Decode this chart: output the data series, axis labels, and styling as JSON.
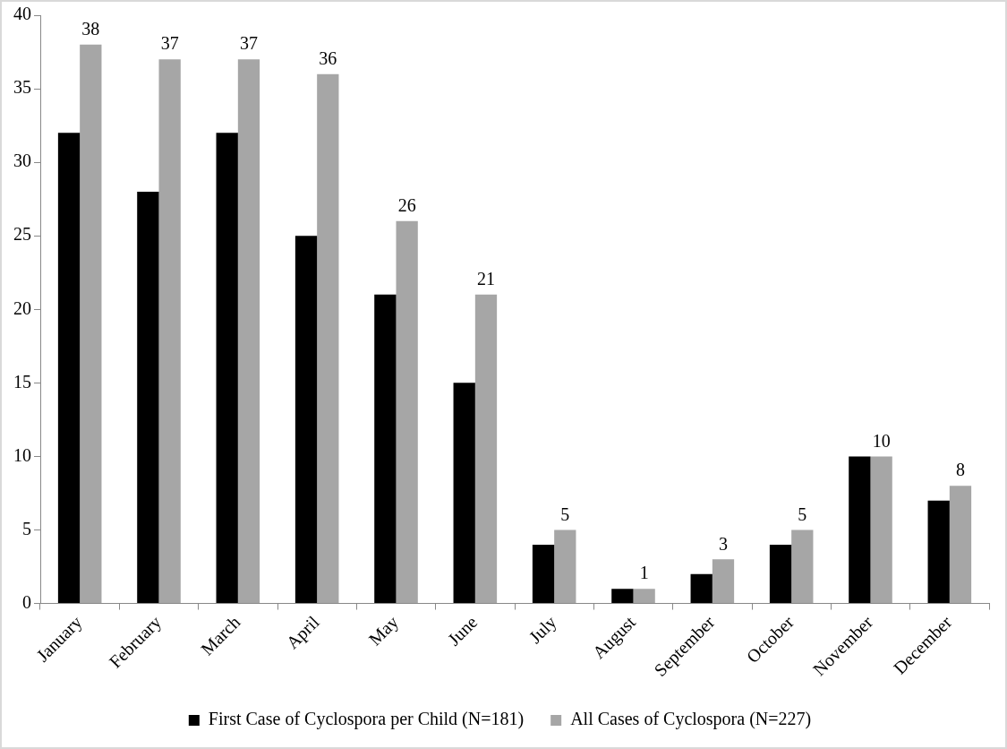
{
  "chart_data": {
    "type": "bar",
    "categories": [
      "January",
      "February",
      "March",
      "April",
      "May",
      "June",
      "July",
      "August",
      "September",
      "October",
      "November",
      "December"
    ],
    "series": [
      {
        "name": "First Case of Cyclospora per Child (N=181)",
        "color": "#000000",
        "values": [
          32,
          28,
          32,
          25,
          21,
          15,
          4,
          1,
          2,
          4,
          10,
          7
        ]
      },
      {
        "name": "All Cases of Cyclospora (N=227)",
        "color": "#a6a6a6",
        "values": [
          38,
          37,
          37,
          36,
          26,
          21,
          5,
          1,
          3,
          5,
          10,
          8
        ],
        "value_labels": [
          "38",
          "37",
          "37",
          "36",
          "26",
          "21",
          "5",
          "1",
          "3",
          "5",
          "10",
          "8"
        ]
      }
    ],
    "ylim": [
      0,
      40
    ],
    "yticks": [
      0,
      5,
      10,
      15,
      20,
      25,
      30,
      35,
      40
    ],
    "grid": false,
    "legend": "bottom"
  }
}
